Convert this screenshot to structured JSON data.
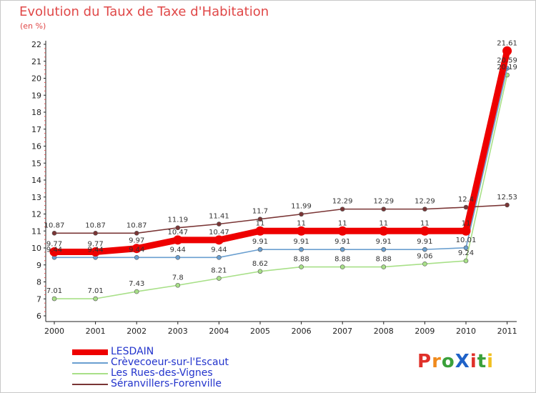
{
  "title": "Evolution du Taux de Taxe d'Habitation",
  "unit_label": "(en %)",
  "logo_text": "ProXiti",
  "logo_colors": [
    "#e0302a",
    "#f08a1c",
    "#3aa03a",
    "#1f62c8",
    "#e0302a",
    "#3aa03a",
    "#f0c020"
  ],
  "chart_data": {
    "type": "line",
    "title": "Evolution du Taux de Taxe d'Habitation",
    "ylabel": "(en %)",
    "xlabel": "",
    "x": [
      "2000",
      "2001",
      "2002",
      "2003",
      "2004",
      "2005",
      "2006",
      "2007",
      "2008",
      "2009",
      "2010",
      "2011"
    ],
    "ylim": [
      6,
      22
    ],
    "yticks": [
      "6",
      "7",
      "8",
      "9",
      "10",
      "11",
      "12",
      "13",
      "14",
      "15",
      "16",
      "17",
      "18",
      "19",
      "20",
      "21",
      "22"
    ],
    "grid": false,
    "legend_position": "bottom-left",
    "series": [
      {
        "name": "LESDAIN",
        "color": "#ee0000",
        "values": [
          9.77,
          9.77,
          9.97,
          10.47,
          10.47,
          11,
          11,
          11,
          11,
          11,
          11,
          21.61
        ],
        "labels": [
          "9.77",
          "9.77",
          "9.97",
          "10.47",
          "10.47",
          "11",
          "11",
          "11",
          "11",
          "11",
          "11",
          "21.61"
        ]
      },
      {
        "name": "Crèvecoeur-sur-l'Escaut",
        "color": "#6a9fd0",
        "values": [
          9.44,
          9.44,
          9.44,
          9.44,
          9.44,
          9.91,
          9.91,
          9.91,
          9.91,
          9.91,
          10.01,
          20.59
        ],
        "labels": [
          "9.44",
          "9.44",
          "9.44",
          "9.44",
          "9.44",
          "9.91",
          "9.91",
          "9.91",
          "9.91",
          "9.91",
          "10.01",
          "20.59"
        ]
      },
      {
        "name": "Les Rues-des-Vignes",
        "color": "#a8e088",
        "values": [
          7.01,
          7.01,
          7.43,
          7.8,
          8.21,
          8.62,
          8.88,
          8.88,
          8.88,
          9.06,
          9.24,
          20.19
        ],
        "labels": [
          "7.01",
          "7.01",
          "7.43",
          "7.8",
          "8.21",
          "8.62",
          "8.88",
          "8.88",
          "8.88",
          "9.06",
          "9.24",
          "20.19"
        ]
      },
      {
        "name": "Séranvillers-Forenville",
        "color": "#7a3535",
        "values": [
          10.87,
          10.87,
          10.87,
          11.19,
          11.41,
          11.7,
          11.99,
          12.29,
          12.29,
          12.29,
          12.4,
          12.53
        ],
        "labels": [
          "10.87",
          "10.87",
          "10.87",
          "11.19",
          "11.41",
          "11.7",
          "11.99",
          "12.29",
          "12.29",
          "12.29",
          "12.4",
          "12.53"
        ]
      }
    ]
  }
}
